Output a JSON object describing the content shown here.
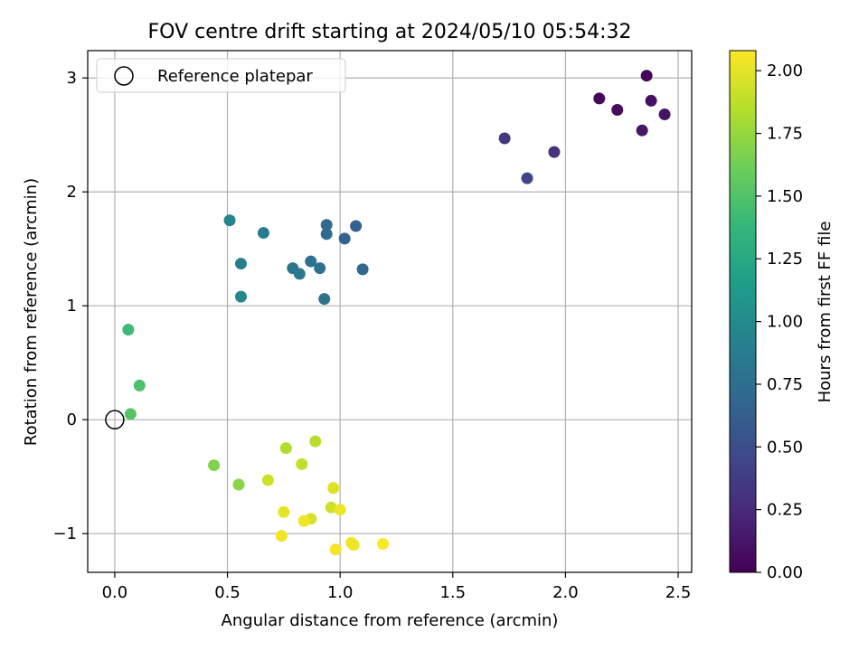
{
  "chart_data": {
    "type": "scatter",
    "title": "FOV centre drift starting at 2024/05/10 05:54:32",
    "xlabel": "Angular distance from reference (arcmin)",
    "ylabel": "Rotation from reference (arcmin)",
    "xlim": [
      -0.12,
      2.56
    ],
    "ylim": [
      -1.34,
      3.24
    ],
    "xticks": [
      0.0,
      0.5,
      1.0,
      1.5,
      2.0,
      2.5
    ],
    "xtick_labels": [
      "0.0",
      "0.5",
      "1.0",
      "1.5",
      "2.0",
      "2.5"
    ],
    "yticks": [
      -1,
      0,
      1,
      2,
      3
    ],
    "ytick_labels": [
      "−1",
      "0",
      "1",
      "2",
      "3"
    ],
    "grid": true,
    "legend": {
      "placement": "top-left",
      "entries": [
        {
          "label": "Reference platepar",
          "marker": "open-circle",
          "x": 0.0,
          "y": 0.0
        }
      ]
    },
    "colorbar": {
      "label": "Hours from first FF file",
      "colormap": "viridis",
      "range": [
        0.0,
        2.08
      ],
      "ticks": [
        0.0,
        0.25,
        0.5,
        0.75,
        1.0,
        1.25,
        1.5,
        1.75,
        2.0
      ],
      "tick_labels": [
        "0.00",
        "0.25",
        "0.50",
        "0.75",
        "1.00",
        "1.25",
        "1.50",
        "1.75",
        "2.00"
      ],
      "color_stops": [
        "#440154",
        "#482878",
        "#3e4989",
        "#31688e",
        "#26828e",
        "#1f9e89",
        "#35b779",
        "#6ece58",
        "#b5de2b",
        "#fde725"
      ]
    },
    "points": [
      {
        "x": 2.36,
        "y": 3.02,
        "c": 0.02
      },
      {
        "x": 2.15,
        "y": 2.82,
        "c": 0.05
      },
      {
        "x": 2.23,
        "y": 2.72,
        "c": 0.07
      },
      {
        "x": 2.38,
        "y": 2.8,
        "c": 0.09
      },
      {
        "x": 2.44,
        "y": 2.68,
        "c": 0.11
      },
      {
        "x": 2.34,
        "y": 2.54,
        "c": 0.13
      },
      {
        "x": 1.95,
        "y": 2.35,
        "c": 0.3
      },
      {
        "x": 1.73,
        "y": 2.47,
        "c": 0.36
      },
      {
        "x": 1.83,
        "y": 2.12,
        "c": 0.45
      },
      {
        "x": 1.07,
        "y": 1.7,
        "c": 0.64
      },
      {
        "x": 1.02,
        "y": 1.59,
        "c": 0.67
      },
      {
        "x": 1.1,
        "y": 1.32,
        "c": 0.7
      },
      {
        "x": 0.94,
        "y": 1.71,
        "c": 0.72
      },
      {
        "x": 0.94,
        "y": 1.63,
        "c": 0.74
      },
      {
        "x": 0.87,
        "y": 1.39,
        "c": 0.76
      },
      {
        "x": 0.91,
        "y": 1.33,
        "c": 0.78
      },
      {
        "x": 0.93,
        "y": 1.06,
        "c": 0.8
      },
      {
        "x": 0.79,
        "y": 1.33,
        "c": 0.82
      },
      {
        "x": 0.82,
        "y": 1.28,
        "c": 0.84
      },
      {
        "x": 0.66,
        "y": 1.64,
        "c": 0.87
      },
      {
        "x": 0.56,
        "y": 1.37,
        "c": 0.9
      },
      {
        "x": 0.51,
        "y": 1.75,
        "c": 0.94
      },
      {
        "x": 0.56,
        "y": 1.08,
        "c": 0.97
      },
      {
        "x": 0.06,
        "y": 0.79,
        "c": 1.42
      },
      {
        "x": 0.11,
        "y": 0.3,
        "c": 1.48
      },
      {
        "x": 0.07,
        "y": 0.05,
        "c": 1.52
      },
      {
        "x": 0.44,
        "y": -0.4,
        "c": 1.68
      },
      {
        "x": 0.55,
        "y": -0.57,
        "c": 1.71
      },
      {
        "x": 0.76,
        "y": -0.25,
        "c": 1.84
      },
      {
        "x": 0.89,
        "y": -0.19,
        "c": 1.86
      },
      {
        "x": 0.83,
        "y": -0.39,
        "c": 1.88
      },
      {
        "x": 0.68,
        "y": -0.53,
        "c": 1.93
      },
      {
        "x": 0.97,
        "y": -0.6,
        "c": 1.98
      },
      {
        "x": 0.96,
        "y": -0.77,
        "c": 1.92
      },
      {
        "x": 1.0,
        "y": -0.79,
        "c": 2.02
      },
      {
        "x": 0.75,
        "y": -0.81,
        "c": 2.0
      },
      {
        "x": 0.87,
        "y": -0.87,
        "c": 1.95
      },
      {
        "x": 0.84,
        "y": -0.89,
        "c": 2.03
      },
      {
        "x": 0.74,
        "y": -1.02,
        "c": 2.04
      },
      {
        "x": 0.98,
        "y": -1.14,
        "c": 2.05
      },
      {
        "x": 1.05,
        "y": -1.08,
        "c": 2.06
      },
      {
        "x": 1.06,
        "y": -1.1,
        "c": 2.03
      },
      {
        "x": 1.19,
        "y": -1.09,
        "c": 2.07
      }
    ]
  }
}
